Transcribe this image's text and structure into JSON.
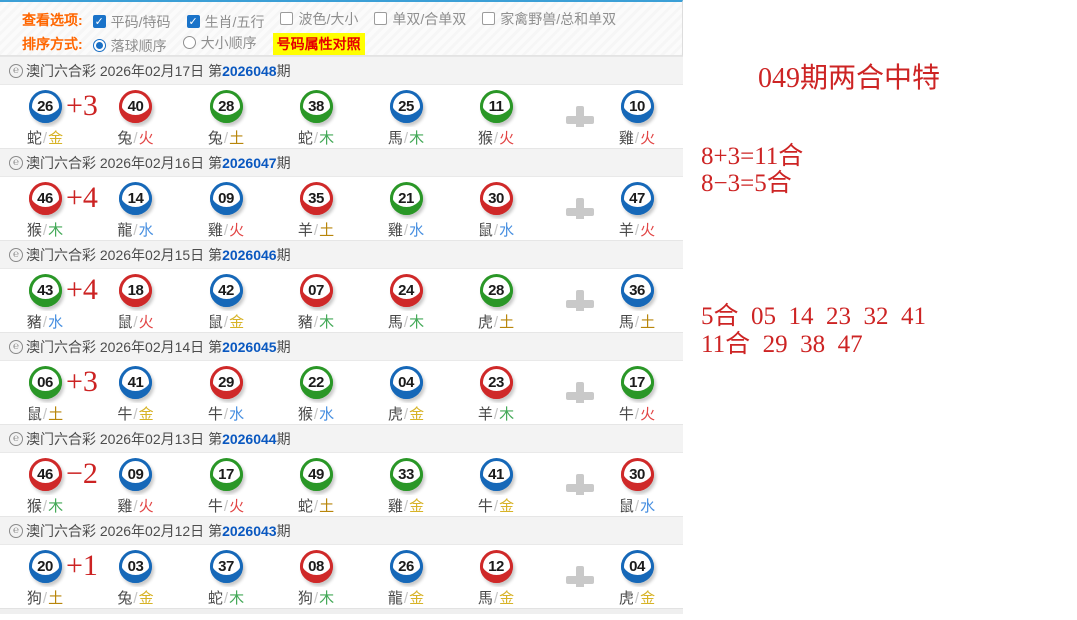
{
  "options": {
    "view_label": "查看选项:",
    "view_items": [
      {
        "label": "平码/特码",
        "checked": true
      },
      {
        "label": "生肖/五行",
        "checked": true
      },
      {
        "label": "波色/大小",
        "checked": false
      },
      {
        "label": "单双/合单双",
        "checked": false
      },
      {
        "label": "家禽野兽/总和单双",
        "checked": false
      }
    ],
    "sort_label": "排序方式:",
    "sort_items": [
      {
        "label": "落球顺序",
        "selected": true
      },
      {
        "label": "大小顺序",
        "selected": false
      }
    ],
    "compare_button": "号码属性对照"
  },
  "draws": [
    {
      "lottery": "澳门六合彩",
      "date": "2026年02月17日",
      "issue_prefix": "第",
      "issue": "2026048",
      "issue_suffix": "期",
      "annotation": "+3",
      "balls": [
        {
          "num": "26",
          "color": "blue",
          "zodiac": "蛇",
          "element": "金"
        },
        {
          "num": "40",
          "color": "red",
          "zodiac": "兔",
          "element": "火"
        },
        {
          "num": "28",
          "color": "green",
          "zodiac": "兔",
          "element": "土"
        },
        {
          "num": "38",
          "color": "green",
          "zodiac": "蛇",
          "element": "木"
        },
        {
          "num": "25",
          "color": "blue",
          "zodiac": "馬",
          "element": "木"
        },
        {
          "num": "11",
          "color": "green",
          "zodiac": "猴",
          "element": "火"
        },
        {
          "num": "10",
          "color": "blue",
          "zodiac": "雞",
          "element": "火"
        }
      ]
    },
    {
      "lottery": "澳门六合彩",
      "date": "2026年02月16日",
      "issue_prefix": "第",
      "issue": "2026047",
      "issue_suffix": "期",
      "annotation": "+4",
      "balls": [
        {
          "num": "46",
          "color": "red",
          "zodiac": "猴",
          "element": "木"
        },
        {
          "num": "14",
          "color": "blue",
          "zodiac": "龍",
          "element": "水"
        },
        {
          "num": "09",
          "color": "blue",
          "zodiac": "雞",
          "element": "火"
        },
        {
          "num": "35",
          "color": "red",
          "zodiac": "羊",
          "element": "土"
        },
        {
          "num": "21",
          "color": "green",
          "zodiac": "雞",
          "element": "水"
        },
        {
          "num": "30",
          "color": "red",
          "zodiac": "鼠",
          "element": "水"
        },
        {
          "num": "47",
          "color": "blue",
          "zodiac": "羊",
          "element": "火"
        }
      ]
    },
    {
      "lottery": "澳门六合彩",
      "date": "2026年02月15日",
      "issue_prefix": "第",
      "issue": "2026046",
      "issue_suffix": "期",
      "annotation": "+4",
      "balls": [
        {
          "num": "43",
          "color": "green",
          "zodiac": "豬",
          "element": "水"
        },
        {
          "num": "18",
          "color": "red",
          "zodiac": "鼠",
          "element": "火"
        },
        {
          "num": "42",
          "color": "blue",
          "zodiac": "鼠",
          "element": "金"
        },
        {
          "num": "07",
          "color": "red",
          "zodiac": "豬",
          "element": "木"
        },
        {
          "num": "24",
          "color": "red",
          "zodiac": "馬",
          "element": "木"
        },
        {
          "num": "28",
          "color": "green",
          "zodiac": "虎",
          "element": "土"
        },
        {
          "num": "36",
          "color": "blue",
          "zodiac": "馬",
          "element": "土"
        }
      ]
    },
    {
      "lottery": "澳门六合彩",
      "date": "2026年02月14日",
      "issue_prefix": "第",
      "issue": "2026045",
      "issue_suffix": "期",
      "annotation": "+3",
      "balls": [
        {
          "num": "06",
          "color": "green",
          "zodiac": "鼠",
          "element": "土"
        },
        {
          "num": "41",
          "color": "blue",
          "zodiac": "牛",
          "element": "金"
        },
        {
          "num": "29",
          "color": "red",
          "zodiac": "牛",
          "element": "水"
        },
        {
          "num": "22",
          "color": "green",
          "zodiac": "猴",
          "element": "水"
        },
        {
          "num": "04",
          "color": "blue",
          "zodiac": "虎",
          "element": "金"
        },
        {
          "num": "23",
          "color": "red",
          "zodiac": "羊",
          "element": "木"
        },
        {
          "num": "17",
          "color": "green",
          "zodiac": "牛",
          "element": "火"
        }
      ]
    },
    {
      "lottery": "澳门六合彩",
      "date": "2026年02月13日",
      "issue_prefix": "第",
      "issue": "2026044",
      "issue_suffix": "期",
      "annotation": "−2",
      "balls": [
        {
          "num": "46",
          "color": "red",
          "zodiac": "猴",
          "element": "木"
        },
        {
          "num": "09",
          "color": "blue",
          "zodiac": "雞",
          "element": "火"
        },
        {
          "num": "17",
          "color": "green",
          "zodiac": "牛",
          "element": "火"
        },
        {
          "num": "49",
          "color": "green",
          "zodiac": "蛇",
          "element": "土"
        },
        {
          "num": "33",
          "color": "green",
          "zodiac": "雞",
          "element": "金"
        },
        {
          "num": "41",
          "color": "blue",
          "zodiac": "牛",
          "element": "金"
        },
        {
          "num": "30",
          "color": "red",
          "zodiac": "鼠",
          "element": "水"
        }
      ]
    },
    {
      "lottery": "澳门六合彩",
      "date": "2026年02月12日",
      "issue_prefix": "第",
      "issue": "2026043",
      "issue_suffix": "期",
      "annotation": "+1",
      "balls": [
        {
          "num": "20",
          "color": "blue",
          "zodiac": "狗",
          "element": "土"
        },
        {
          "num": "03",
          "color": "blue",
          "zodiac": "兔",
          "element": "金"
        },
        {
          "num": "37",
          "color": "blue",
          "zodiac": "蛇",
          "element": "木"
        },
        {
          "num": "08",
          "color": "red",
          "zodiac": "狗",
          "element": "木"
        },
        {
          "num": "26",
          "color": "blue",
          "zodiac": "龍",
          "element": "金"
        },
        {
          "num": "12",
          "color": "red",
          "zodiac": "馬",
          "element": "金"
        },
        {
          "num": "04",
          "color": "blue",
          "zodiac": "虎",
          "element": "金"
        }
      ]
    }
  ],
  "side_panel": {
    "title": "049期两合中特",
    "formula1": "8+3=11合",
    "formula2": "8−3=5合",
    "list1": "5合  05  14  23  32  41",
    "list2": "11合  29  38  47"
  },
  "colors": {
    "ball": {
      "red": "#cf2929",
      "blue": "#1668b8",
      "green": "#2a9727"
    },
    "element": {
      "金": "#d7b327",
      "木": "#43a957",
      "水": "#478fe0",
      "火": "#e24545",
      "土": "#b8860b"
    },
    "annotation": "#cc2323",
    "side_text": "#cd2424"
  }
}
